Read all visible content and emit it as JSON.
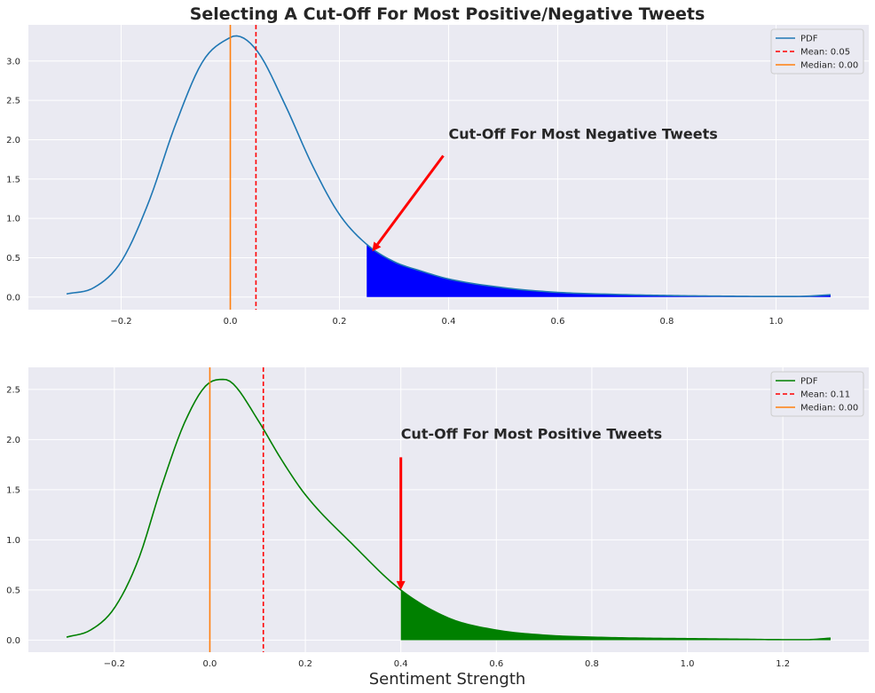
{
  "figure": {
    "title": "Selecting A Cut-Off For Most Positive/Negative Tweets",
    "xlabel": "Sentiment Strength"
  },
  "chart_data": [
    {
      "type": "line",
      "xlim": [
        -0.37,
        1.17
      ],
      "ylim": [
        -0.16,
        3.46
      ],
      "xticks": [
        -0.2,
        0.0,
        0.2,
        0.4,
        0.6,
        0.8,
        1.0
      ],
      "xtick_labels": [
        "−0.2",
        "0.0",
        "0.2",
        "0.4",
        "0.6",
        "0.8",
        "1.0"
      ],
      "yticks": [
        0.0,
        0.5,
        1.0,
        1.5,
        2.0,
        2.5,
        3.0
      ],
      "ytick_labels": [
        "0.0",
        "0.5",
        "1.0",
        "1.5",
        "2.0",
        "2.5",
        "3.0"
      ],
      "grid": true,
      "series": [
        {
          "name": "PDF",
          "color": "#1f77b4",
          "x": [
            -0.3,
            -0.25,
            -0.2,
            -0.15,
            -0.1,
            -0.05,
            0.0,
            0.01,
            0.05,
            0.1,
            0.15,
            0.2,
            0.25,
            0.3,
            0.35,
            0.4,
            0.5,
            0.6,
            0.7,
            0.8,
            0.9,
            1.0,
            1.05,
            1.1
          ],
          "y": [
            0.04,
            0.12,
            0.45,
            1.2,
            2.2,
            3.0,
            3.3,
            3.32,
            3.12,
            2.45,
            1.68,
            1.05,
            0.67,
            0.45,
            0.33,
            0.23,
            0.12,
            0.06,
            0.035,
            0.02,
            0.012,
            0.008,
            0.01,
            0.03
          ]
        }
      ],
      "mean": {
        "label": "Mean: 0.05",
        "value": 0.047,
        "color": "#ff0000"
      },
      "median": {
        "label": "Median: 0.00",
        "value": 0.0,
        "color": "#ff7f0e"
      },
      "shaded_region": {
        "from_x": 0.25,
        "color": "#0000ff"
      },
      "legend": {
        "position": "top-right",
        "entries": [
          "PDF",
          "Mean: 0.05",
          "Median: 0.00"
        ]
      },
      "annotation": {
        "text": "Cut-Off For Most Negative Tweets",
        "text_xy": [
          0.4,
          2.0
        ],
        "arrow_xy": [
          0.26,
          0.58
        ],
        "color": "#ff0000"
      }
    },
    {
      "type": "line",
      "xlim": [
        -0.38,
        1.38
      ],
      "ylim": [
        -0.12,
        2.72
      ],
      "xticks": [
        -0.2,
        0.0,
        0.2,
        0.4,
        0.6,
        0.8,
        1.0,
        1.2
      ],
      "xtick_labels": [
        "−0.2",
        "0.0",
        "0.2",
        "0.4",
        "0.6",
        "0.8",
        "1.0",
        "1.2"
      ],
      "yticks": [
        0.0,
        0.5,
        1.0,
        1.5,
        2.0,
        2.5
      ],
      "ytick_labels": [
        "0.0",
        "0.5",
        "1.0",
        "1.5",
        "2.0",
        "2.5"
      ],
      "grid": true,
      "series": [
        {
          "name": "PDF",
          "color": "#008000",
          "x": [
            -0.3,
            -0.25,
            -0.2,
            -0.15,
            -0.1,
            -0.05,
            0.0,
            0.03,
            0.05,
            0.1,
            0.15,
            0.2,
            0.3,
            0.4,
            0.5,
            0.6,
            0.7,
            0.8,
            0.9,
            1.0,
            1.1,
            1.2,
            1.25,
            1.3
          ],
          "y": [
            0.03,
            0.1,
            0.32,
            0.8,
            1.55,
            2.2,
            2.57,
            2.6,
            2.55,
            2.2,
            1.8,
            1.45,
            0.95,
            0.5,
            0.22,
            0.1,
            0.05,
            0.03,
            0.02,
            0.015,
            0.01,
            0.005,
            0.005,
            0.02
          ]
        }
      ],
      "mean": {
        "label": "Mean: 0.11",
        "value": 0.112,
        "color": "#ff0000"
      },
      "median": {
        "label": "Median: 0.00",
        "value": 0.0,
        "color": "#ff7f0e"
      },
      "shaded_region": {
        "from_x": 0.4,
        "color": "#008000"
      },
      "legend": {
        "position": "top-right",
        "entries": [
          "PDF",
          "Mean: 0.11",
          "Median: 0.00"
        ]
      },
      "annotation": {
        "text": "Cut-Off For Most Positive Tweets",
        "text_xy": [
          0.4,
          2.0
        ],
        "arrow_xy": [
          0.4,
          0.5
        ],
        "color": "#ff0000"
      }
    }
  ]
}
